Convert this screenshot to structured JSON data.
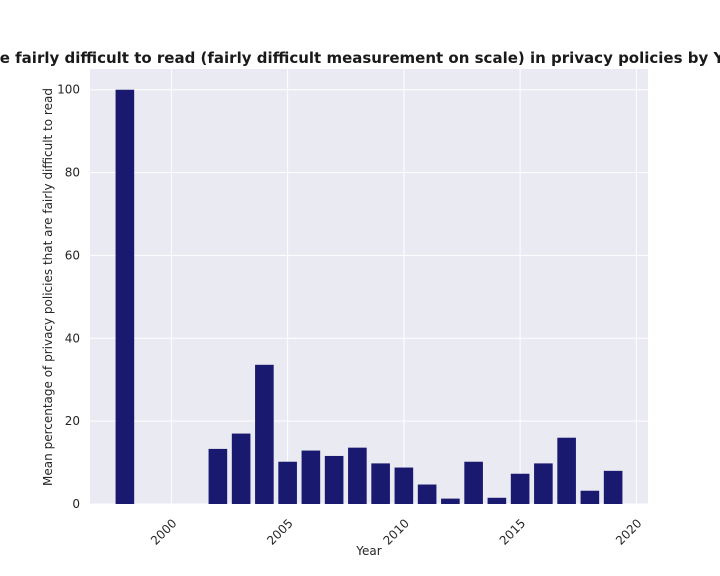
{
  "chart_data": {
    "type": "bar",
    "title": "Mean percentage of privacy policies that are fairly difficult to read (fairly difficult measurement on scale) in privacy policies by Year when categories contain 'social' OR 'tech'",
    "xlabel": "Year",
    "ylabel": "Mean percentage of privacy policies that are fairly difficult to read",
    "xlim": [
      1996.5,
      2020.5
    ],
    "ylim": [
      0,
      105
    ],
    "x_ticks": [
      2000,
      2005,
      2010,
      2015,
      2020
    ],
    "y_ticks": [
      0,
      20,
      40,
      60,
      80,
      100
    ],
    "grid": true,
    "bar_color": "#191970",
    "background_color": "#EAEAF2",
    "x": [
      1998,
      2002,
      2003,
      2004,
      2005,
      2006,
      2007,
      2008,
      2009,
      2010,
      2011,
      2012,
      2013,
      2014,
      2015,
      2016,
      2017,
      2018,
      2019
    ],
    "values": [
      100,
      13.3,
      17.0,
      33.6,
      10.2,
      12.9,
      11.6,
      13.6,
      9.8,
      8.8,
      4.7,
      1.3,
      10.2,
      1.5,
      7.3,
      9.8,
      16.0,
      3.2,
      8.0
    ]
  }
}
